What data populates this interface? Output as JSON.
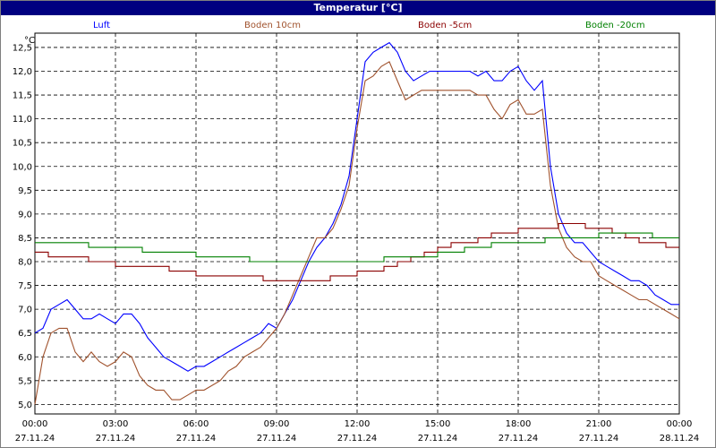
{
  "window": {
    "title": "Temperatur [°C]"
  },
  "chart_data": {
    "type": "line",
    "title": "Temperatur [°C]",
    "ylabel": "°C",
    "ylim": [
      4.8,
      12.8
    ],
    "yticks": [
      "12,5",
      "12,0",
      "11,5",
      "11,0",
      "10,5",
      "10,0",
      "9,5",
      "9,0",
      "8,5",
      "8,0",
      "7,5",
      "7,0",
      "6,5",
      "6,0",
      "5,5",
      "5,0"
    ],
    "ytick_values": [
      12.5,
      12.0,
      11.5,
      11.0,
      10.5,
      10.0,
      9.5,
      9.0,
      8.5,
      8.0,
      7.5,
      7.0,
      6.5,
      6.0,
      5.5,
      5.0
    ],
    "xlim": [
      0,
      24
    ],
    "xticks": [
      {
        "time": "00:00",
        "date": "27.11.24",
        "h": 0
      },
      {
        "time": "03:00",
        "date": "27.11.24",
        "h": 3
      },
      {
        "time": "06:00",
        "date": "27.11.24",
        "h": 6
      },
      {
        "time": "09:00",
        "date": "27.11.24",
        "h": 9
      },
      {
        "time": "12:00",
        "date": "27.11.24",
        "h": 12
      },
      {
        "time": "15:00",
        "date": "27.11.24",
        "h": 15
      },
      {
        "time": "18:00",
        "date": "27.11.24",
        "h": 18
      },
      {
        "time": "21:00",
        "date": "27.11.24",
        "h": 21
      },
      {
        "time": "00:00",
        "date": "28.11.24",
        "h": 24
      }
    ],
    "grid": true,
    "legend_position": "top",
    "series": [
      {
        "name": "Luft",
        "color": "#0000ff",
        "x": [
          0,
          0.3,
          0.6,
          0.9,
          1.2,
          1.5,
          1.8,
          2.1,
          2.4,
          2.7,
          3.0,
          3.3,
          3.6,
          3.9,
          4.2,
          4.5,
          4.8,
          5.1,
          5.4,
          5.7,
          6.0,
          6.3,
          6.6,
          6.9,
          7.2,
          7.5,
          7.8,
          8.1,
          8.4,
          8.7,
          9.0,
          9.3,
          9.6,
          9.9,
          10.2,
          10.5,
          10.8,
          11.1,
          11.4,
          11.7,
          12.0,
          12.3,
          12.6,
          12.9,
          13.2,
          13.5,
          13.8,
          14.1,
          14.4,
          14.7,
          15.0,
          15.3,
          15.6,
          15.9,
          16.2,
          16.5,
          16.8,
          17.1,
          17.4,
          17.7,
          18.0,
          18.3,
          18.6,
          18.9,
          19.2,
          19.5,
          19.8,
          20.1,
          20.4,
          20.7,
          21.0,
          21.3,
          21.6,
          21.9,
          22.2,
          22.5,
          22.8,
          23.1,
          23.4,
          23.7,
          24.0
        ],
        "y": [
          6.5,
          6.6,
          7.0,
          7.1,
          7.2,
          7.0,
          6.8,
          6.8,
          6.9,
          6.8,
          6.7,
          6.9,
          6.9,
          6.7,
          6.4,
          6.2,
          6.0,
          5.9,
          5.8,
          5.7,
          5.8,
          5.8,
          5.9,
          6.0,
          6.1,
          6.2,
          6.3,
          6.4,
          6.5,
          6.7,
          6.6,
          6.9,
          7.2,
          7.6,
          8.0,
          8.3,
          8.5,
          8.8,
          9.2,
          9.8,
          11.0,
          12.2,
          12.4,
          12.5,
          12.6,
          12.4,
          12.0,
          11.8,
          11.9,
          12.0,
          12.0,
          12.0,
          12.0,
          12.0,
          12.0,
          11.9,
          12.0,
          11.8,
          11.8,
          12.0,
          12.1,
          11.8,
          11.6,
          11.8,
          10.0,
          9.0,
          8.6,
          8.4,
          8.4,
          8.2,
          8.0,
          7.9,
          7.8,
          7.7,
          7.6,
          7.6,
          7.5,
          7.3,
          7.2,
          7.1,
          7.1
        ]
      },
      {
        "name": "Boden 10cm",
        "color": "#a0522d",
        "x": [
          0,
          0.3,
          0.6,
          0.9,
          1.2,
          1.5,
          1.8,
          2.1,
          2.4,
          2.7,
          3.0,
          3.3,
          3.6,
          3.9,
          4.2,
          4.5,
          4.8,
          5.1,
          5.4,
          5.7,
          6.0,
          6.3,
          6.6,
          6.9,
          7.2,
          7.5,
          7.8,
          8.1,
          8.4,
          8.7,
          9.0,
          9.3,
          9.6,
          9.9,
          10.2,
          10.5,
          10.8,
          11.1,
          11.4,
          11.7,
          12.0,
          12.3,
          12.6,
          12.9,
          13.2,
          13.5,
          13.8,
          14.1,
          14.4,
          14.7,
          15.0,
          15.3,
          15.6,
          15.9,
          16.2,
          16.5,
          16.8,
          17.1,
          17.4,
          17.7,
          18.0,
          18.3,
          18.6,
          18.9,
          19.2,
          19.5,
          19.8,
          20.1,
          20.4,
          20.7,
          21.0,
          21.3,
          21.6,
          21.9,
          22.2,
          22.5,
          22.8,
          23.1,
          23.4,
          23.7,
          24.0
        ],
        "y": [
          5.0,
          6.0,
          6.5,
          6.6,
          6.6,
          6.1,
          5.9,
          6.1,
          5.9,
          5.8,
          5.9,
          6.1,
          6.0,
          5.6,
          5.4,
          5.3,
          5.3,
          5.1,
          5.1,
          5.2,
          5.3,
          5.3,
          5.4,
          5.5,
          5.7,
          5.8,
          6.0,
          6.1,
          6.2,
          6.4,
          6.6,
          6.9,
          7.3,
          7.7,
          8.1,
          8.5,
          8.5,
          8.7,
          9.1,
          9.6,
          10.8,
          11.8,
          11.9,
          12.1,
          12.2,
          11.8,
          11.4,
          11.5,
          11.6,
          11.6,
          11.6,
          11.6,
          11.6,
          11.6,
          11.6,
          11.5,
          11.5,
          11.2,
          11.0,
          11.3,
          11.4,
          11.1,
          11.1,
          11.2,
          9.6,
          8.7,
          8.3,
          8.1,
          8.0,
          8.0,
          7.7,
          7.6,
          7.5,
          7.4,
          7.3,
          7.2,
          7.2,
          7.1,
          7.0,
          6.9,
          6.8
        ]
      },
      {
        "name": "Boden -5cm",
        "color": "#8b0000",
        "x": [
          0,
          0.5,
          1.0,
          1.5,
          2.0,
          2.5,
          3.0,
          3.5,
          4.0,
          4.5,
          5.0,
          5.5,
          6.0,
          6.5,
          7.0,
          7.5,
          8.0,
          8.5,
          9.0,
          9.5,
          10.0,
          10.5,
          11.0,
          11.5,
          12.0,
          12.5,
          13.0,
          13.5,
          14.0,
          14.5,
          15.0,
          15.5,
          16.0,
          16.5,
          17.0,
          17.5,
          18.0,
          18.5,
          19.0,
          19.5,
          20.0,
          20.5,
          21.0,
          21.5,
          22.0,
          22.5,
          23.0,
          23.5,
          24.0
        ],
        "y": [
          8.2,
          8.1,
          8.1,
          8.1,
          8.0,
          8.0,
          7.9,
          7.9,
          7.9,
          7.9,
          7.8,
          7.8,
          7.7,
          7.7,
          7.7,
          7.7,
          7.7,
          7.6,
          7.6,
          7.6,
          7.6,
          7.6,
          7.7,
          7.7,
          7.8,
          7.8,
          7.9,
          8.0,
          8.1,
          8.2,
          8.3,
          8.4,
          8.4,
          8.5,
          8.6,
          8.6,
          8.7,
          8.7,
          8.7,
          8.8,
          8.8,
          8.7,
          8.7,
          8.6,
          8.5,
          8.4,
          8.4,
          8.3,
          8.3
        ]
      },
      {
        "name": "Boden -20cm",
        "color": "#008000",
        "x": [
          0,
          1,
          2,
          3,
          4,
          5,
          6,
          7,
          8,
          9,
          10,
          11,
          12,
          13,
          14,
          15,
          16,
          17,
          18,
          19,
          20,
          21,
          22,
          23,
          24
        ],
        "y": [
          8.4,
          8.4,
          8.3,
          8.3,
          8.2,
          8.2,
          8.1,
          8.1,
          8.0,
          8.0,
          8.0,
          8.0,
          8.0,
          8.1,
          8.1,
          8.2,
          8.3,
          8.4,
          8.4,
          8.5,
          8.5,
          8.6,
          8.6,
          8.5,
          8.5
        ]
      }
    ]
  }
}
